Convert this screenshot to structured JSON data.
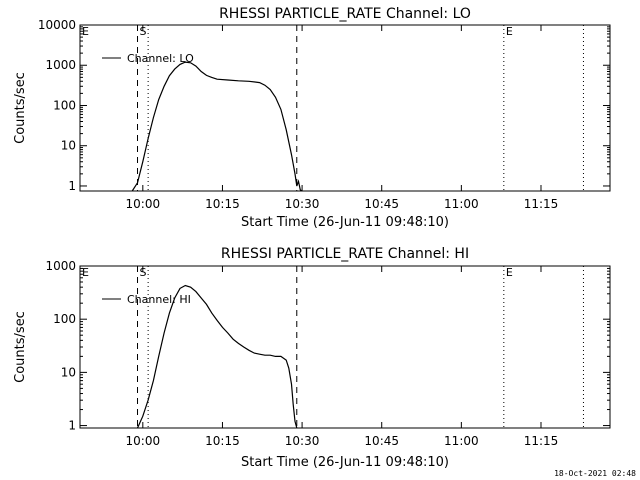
{
  "footer": {
    "timestamp": "18-Oct-2021 02:48"
  },
  "chart_data": [
    {
      "type": "line",
      "title": "RHESSI PARTICLE_RATE Channel: LO",
      "xlabel": "Start Time (26-Jun-11 09:48:10)",
      "ylabel": "Counts/sec",
      "yscale": "log",
      "xlim": [
        "09:48:10",
        "11:28:00"
      ],
      "ylim": [
        0.75,
        10000
      ],
      "x_ticks": [
        "10:00",
        "10:15",
        "10:30",
        "10:45",
        "11:00",
        "11:15"
      ],
      "y_ticks": [
        "1",
        "10",
        "100",
        "1000",
        "10000"
      ],
      "legend": {
        "position": "top-left",
        "entries": [
          "Channel: LO"
        ]
      },
      "markers": [
        {
          "time": "09:48:10",
          "style": "dotted",
          "label": "E"
        },
        {
          "time": "09:59:00",
          "style": "dashed",
          "label": "S"
        },
        {
          "time": "10:01:00",
          "style": "dotted",
          "label": ""
        },
        {
          "time": "10:29:00",
          "style": "dashed",
          "label": ""
        },
        {
          "time": "11:08:00",
          "style": "dotted",
          "label": "E"
        },
        {
          "time": "11:23:00",
          "style": "dotted",
          "label": ""
        }
      ],
      "series": [
        {
          "name": "Channel: LO",
          "x": [
            "09:58:00",
            "09:59:00",
            "10:00:00",
            "10:01:00",
            "10:02:00",
            "10:03:00",
            "10:04:00",
            "10:05:00",
            "10:06:00",
            "10:07:00",
            "10:08:00",
            "10:09:00",
            "10:10:00",
            "10:11:00",
            "10:12:00",
            "10:13:00",
            "10:14:00",
            "10:16:00",
            "10:18:00",
            "10:20:00",
            "10:22:00",
            "10:23:00",
            "10:24:00",
            "10:25:00",
            "10:26:00",
            "10:27:00",
            "10:28:00",
            "10:28:40",
            "10:29:00",
            "10:29:20",
            "10:29:40",
            "10:30:00"
          ],
          "y": [
            0.75,
            1.2,
            4,
            15,
            50,
            140,
            300,
            550,
            800,
            1050,
            1200,
            1150,
            950,
            700,
            560,
            500,
            450,
            430,
            410,
            400,
            370,
            320,
            250,
            160,
            80,
            25,
            6,
            2,
            1,
            1.3,
            0.8,
            0.75
          ]
        }
      ]
    },
    {
      "type": "line",
      "title": "RHESSI PARTICLE_RATE Channel: HI",
      "xlabel": "Start Time (26-Jun-11 09:48:10)",
      "ylabel": "Counts/sec",
      "yscale": "log",
      "xlim": [
        "09:48:10",
        "11:28:00"
      ],
      "ylim": [
        0.9,
        1000
      ],
      "x_ticks": [
        "10:00",
        "10:15",
        "10:30",
        "10:45",
        "11:00",
        "11:15"
      ],
      "y_ticks": [
        "1",
        "10",
        "100",
        "1000"
      ],
      "legend": {
        "position": "top-left",
        "entries": [
          "Channel: HI"
        ]
      },
      "markers": [
        {
          "time": "09:48:10",
          "style": "dotted",
          "label": "E"
        },
        {
          "time": "09:59:00",
          "style": "dashed",
          "label": "S"
        },
        {
          "time": "10:01:00",
          "style": "dotted",
          "label": ""
        },
        {
          "time": "10:29:00",
          "style": "dashed",
          "label": ""
        },
        {
          "time": "11:08:00",
          "style": "dotted",
          "label": "E"
        },
        {
          "time": "11:23:00",
          "style": "dotted",
          "label": ""
        }
      ],
      "series": [
        {
          "name": "Channel: HI",
          "x": [
            "09:59:00",
            "10:00:00",
            "10:01:00",
            "10:02:00",
            "10:03:00",
            "10:04:00",
            "10:05:00",
            "10:06:00",
            "10:07:00",
            "10:08:00",
            "10:09:00",
            "10:10:00",
            "10:11:00",
            "10:12:00",
            "10:13:00",
            "10:14:00",
            "10:15:00",
            "10:16:00",
            "10:17:00",
            "10:18:00",
            "10:19:00",
            "10:20:00",
            "10:21:00",
            "10:22:00",
            "10:23:00",
            "10:24:00",
            "10:25:00",
            "10:26:00",
            "10:27:00",
            "10:27:30",
            "10:28:00",
            "10:28:20",
            "10:28:40",
            "10:29:00"
          ],
          "y": [
            0.9,
            1.5,
            3,
            7,
            20,
            55,
            130,
            250,
            380,
            430,
            400,
            330,
            250,
            190,
            130,
            95,
            70,
            55,
            42,
            35,
            30,
            26,
            23,
            22,
            21,
            21,
            20,
            20,
            17,
            12,
            6,
            2.5,
            1.2,
            0.9
          ]
        }
      ]
    }
  ]
}
